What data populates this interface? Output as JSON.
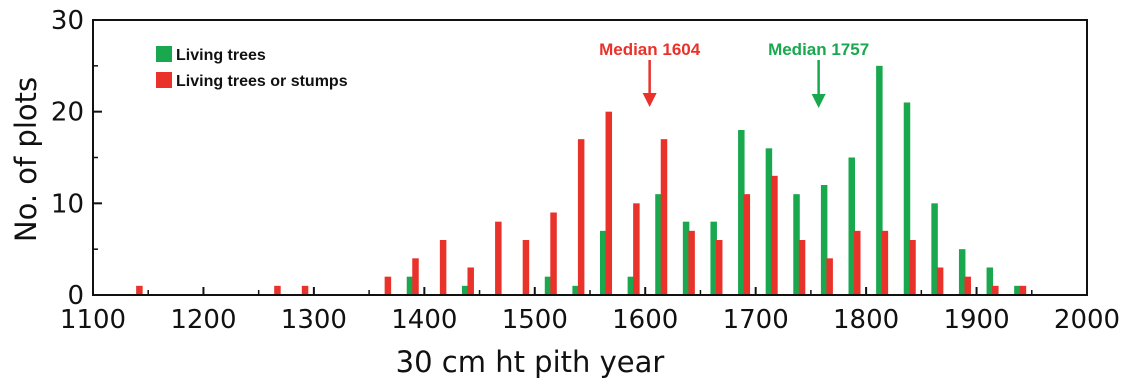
{
  "chart_data": {
    "type": "bar",
    "xlabel": "30 cm ht pith year",
    "ylabel": "No. of plots",
    "xlim": [
      1100,
      2000
    ],
    "ylim": [
      0,
      30
    ],
    "x_ticks": [
      "1100",
      "1200",
      "1300",
      "1400",
      "1500",
      "1600",
      "1700",
      "1800",
      "1900",
      "2000"
    ],
    "y_ticks": [
      "0",
      "10",
      "20",
      "30"
    ],
    "legend_position": "top-left",
    "grid": false,
    "series": [
      {
        "name": "Living trees",
        "color": "#1aa84f",
        "points": [
          {
            "x": 1387,
            "y": 2
          },
          {
            "x": 1437,
            "y": 1
          },
          {
            "x": 1512,
            "y": 2
          },
          {
            "x": 1537,
            "y": 1
          },
          {
            "x": 1562,
            "y": 7
          },
          {
            "x": 1587,
            "y": 2
          },
          {
            "x": 1612,
            "y": 11
          },
          {
            "x": 1637,
            "y": 8
          },
          {
            "x": 1662,
            "y": 8
          },
          {
            "x": 1687,
            "y": 18
          },
          {
            "x": 1712,
            "y": 16
          },
          {
            "x": 1737,
            "y": 11
          },
          {
            "x": 1762,
            "y": 12
          },
          {
            "x": 1787,
            "y": 15
          },
          {
            "x": 1812,
            "y": 25
          },
          {
            "x": 1837,
            "y": 21
          },
          {
            "x": 1862,
            "y": 10
          },
          {
            "x": 1887,
            "y": 5
          },
          {
            "x": 1912,
            "y": 3
          },
          {
            "x": 1937,
            "y": 1
          }
        ]
      },
      {
        "name": "Living trees or stumps",
        "color": "#e8322a",
        "points": [
          {
            "x": 1142,
            "y": 1
          },
          {
            "x": 1267,
            "y": 1
          },
          {
            "x": 1292,
            "y": 1
          },
          {
            "x": 1367,
            "y": 2
          },
          {
            "x": 1392,
            "y": 4
          },
          {
            "x": 1417,
            "y": 6
          },
          {
            "x": 1442,
            "y": 3
          },
          {
            "x": 1467,
            "y": 8
          },
          {
            "x": 1492,
            "y": 6
          },
          {
            "x": 1517,
            "y": 9
          },
          {
            "x": 1542,
            "y": 17
          },
          {
            "x": 1567,
            "y": 20
          },
          {
            "x": 1592,
            "y": 10
          },
          {
            "x": 1617,
            "y": 17
          },
          {
            "x": 1642,
            "y": 7
          },
          {
            "x": 1667,
            "y": 6
          },
          {
            "x": 1692,
            "y": 11
          },
          {
            "x": 1717,
            "y": 13
          },
          {
            "x": 1742,
            "y": 6
          },
          {
            "x": 1767,
            "y": 4
          },
          {
            "x": 1792,
            "y": 7
          },
          {
            "x": 1817,
            "y": 7
          },
          {
            "x": 1842,
            "y": 6
          },
          {
            "x": 1867,
            "y": 3
          },
          {
            "x": 1892,
            "y": 2
          },
          {
            "x": 1917,
            "y": 1
          },
          {
            "x": 1942,
            "y": 1
          }
        ]
      }
    ],
    "annotations": [
      {
        "text": "Median 1604",
        "x": 1604,
        "color": "#e8322a"
      },
      {
        "text": "Median 1757",
        "x": 1757,
        "color": "#1aa84f"
      }
    ]
  }
}
